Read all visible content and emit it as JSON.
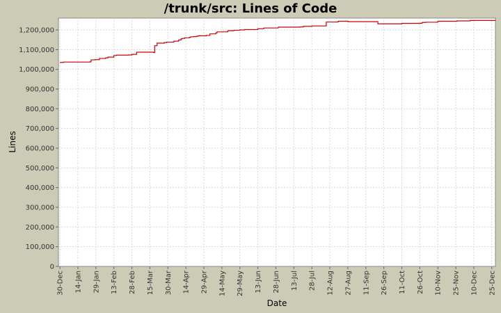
{
  "chart_data": {
    "type": "line",
    "title": "/trunk/src: Lines of Code",
    "xlabel": "Date",
    "ylabel": "Lines",
    "ylim": [
      0,
      1260000
    ],
    "yticks": [
      0,
      100000,
      200000,
      300000,
      400000,
      500000,
      600000,
      700000,
      800000,
      900000,
      1000000,
      1100000,
      1200000
    ],
    "ytick_labels": [
      "0",
      "100,000",
      "200,000",
      "300,000",
      "400,000",
      "500,000",
      "600,000",
      "700,000",
      "800,000",
      "900,000",
      "1,000,000",
      "1,100,000",
      "1,200,000"
    ],
    "xlim": [
      -1.2,
      363
    ],
    "xticks": [
      0,
      15,
      30,
      45,
      60,
      75,
      90,
      105,
      120,
      135,
      150,
      165,
      180,
      195,
      210,
      225,
      240,
      255,
      270,
      285,
      300,
      315,
      330,
      345,
      360
    ],
    "xtick_labels": [
      "30-Dec",
      "14-Jan",
      "29-Jan",
      "13-Feb",
      "28-Feb",
      "15-Mar",
      "30-Mar",
      "14-Apr",
      "29-Apr",
      "14-May",
      "29-May",
      "13-Jun",
      "28-Jun",
      "13-Jul",
      "28-Jul",
      "12-Aug",
      "27-Aug",
      "11-Sep",
      "26-Sep",
      "11-Oct",
      "26-Oct",
      "10-Nov",
      "25-Nov",
      "10-Dec",
      "25-Dec"
    ],
    "grid": true,
    "line_color": "#cc0000",
    "plot_background": "#ffffff",
    "grid_color": "#d8d8d8",
    "series": [
      {
        "step": true,
        "x": [
          0,
          3,
          21,
          25,
          26,
          29,
          33,
          38,
          40,
          45,
          47,
          57,
          60,
          64,
          78,
          79,
          81,
          87,
          89,
          95,
          99,
          101,
          102,
          104,
          108,
          109,
          111,
          114,
          115,
          116,
          117,
          122,
          125,
          130,
          131,
          140,
          145,
          150,
          154,
          165,
          170,
          182,
          185,
          200,
          203,
          210,
          222,
          232,
          240,
          252,
          265,
          285,
          300,
          302,
          305,
          315,
          331,
          342,
          363
        ],
        "y": [
          1035000,
          1037000,
          1037000,
          1038000,
          1048000,
          1049000,
          1055000,
          1058000,
          1062000,
          1070000,
          1072000,
          1073000,
          1076000,
          1087000,
          1085000,
          1120000,
          1133000,
          1136000,
          1138000,
          1143000,
          1149000,
          1155000,
          1157000,
          1160000,
          1162000,
          1165000,
          1166000,
          1168000,
          1169000,
          1171000,
          1170000,
          1172000,
          1180000,
          1185000,
          1190000,
          1196000,
          1198000,
          1200000,
          1202000,
          1206000,
          1210000,
          1214000,
          1214000,
          1215000,
          1218000,
          1220000,
          1240000,
          1244000,
          1242000,
          1242000,
          1231000,
          1233000,
          1234000,
          1238000,
          1239000,
          1244000,
          1246000,
          1248000,
          1250000
        ]
      }
    ]
  }
}
